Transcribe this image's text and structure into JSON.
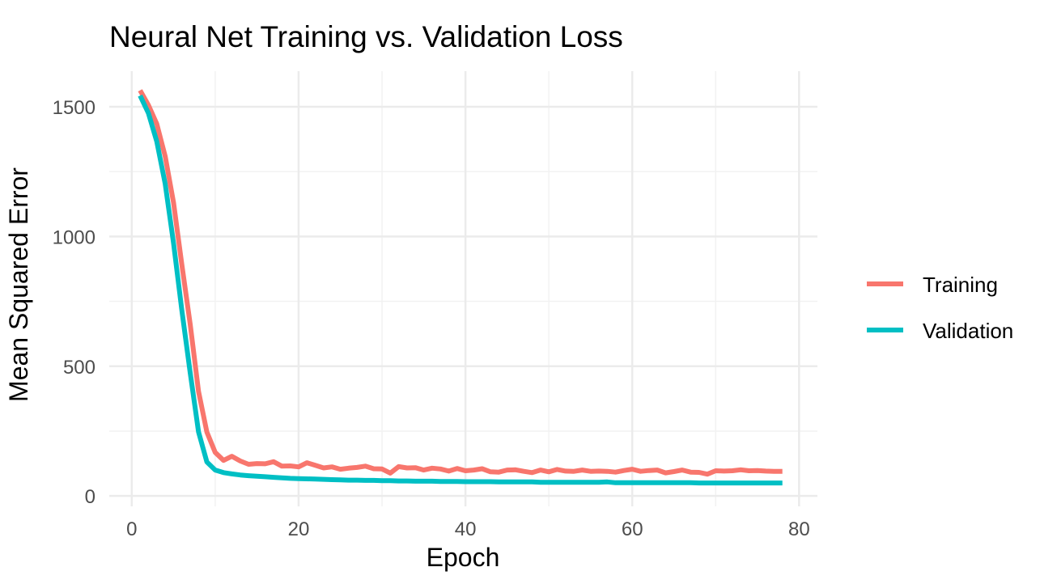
{
  "chart_data": {
    "type": "line",
    "title": "Neural Net Training vs. Validation Loss",
    "xlabel": "Epoch",
    "ylabel": "Mean Squared Error",
    "xlim": [
      -2.7,
      82.2
    ],
    "ylim": [
      -40,
      1637
    ],
    "x_ticks": [
      0,
      20,
      40,
      60,
      80
    ],
    "y_ticks": [
      0,
      500,
      1000,
      1500
    ],
    "grid": true,
    "legend_placement": "right",
    "x": [
      1,
      2,
      3,
      4,
      5,
      6,
      7,
      8,
      9,
      10,
      11,
      12,
      13,
      14,
      15,
      16,
      17,
      18,
      19,
      20,
      21,
      22,
      23,
      24,
      25,
      26,
      27,
      28,
      29,
      30,
      31,
      32,
      33,
      34,
      35,
      36,
      37,
      38,
      39,
      40,
      41,
      42,
      43,
      44,
      45,
      46,
      47,
      48,
      49,
      50,
      51,
      52,
      53,
      54,
      55,
      56,
      57,
      58,
      59,
      60,
      61,
      62,
      63,
      64,
      65,
      66,
      67,
      68,
      69,
      70,
      71,
      72,
      73,
      74,
      75,
      76,
      77,
      78
    ],
    "series": [
      {
        "name": "Training",
        "color": "#F8766D",
        "values": [
          1563,
          1506,
          1434,
          1309,
          1131,
          891,
          662,
          403,
          246,
          168,
          137,
          153,
          135,
          122,
          125,
          124,
          132,
          115,
          116,
          112,
          128,
          118,
          108,
          112,
          103,
          107,
          110,
          115,
          105,
          104,
          88,
          113,
          108,
          109,
          100,
          107,
          104,
          96,
          106,
          97,
          100,
          105,
          93,
          92,
          100,
          101,
          95,
          90,
          100,
          93,
          102,
          96,
          95,
          100,
          95,
          96,
          95,
          92,
          98,
          103,
          95,
          98,
          100,
          89,
          94,
          100,
          92,
          91,
          84,
          97,
          96,
          97,
          101,
          97,
          98,
          96,
          95,
          95
        ]
      },
      {
        "name": "Validation",
        "color": "#00BFC4",
        "values": [
          1543,
          1475,
          1366,
          1203,
          975,
          715,
          475,
          247,
          131,
          100,
          90,
          85,
          81,
          78,
          76,
          74,
          72,
          70,
          68,
          67,
          66,
          65,
          64,
          63,
          62,
          61,
          61,
          60,
          60,
          59,
          59,
          58,
          58,
          57,
          57,
          57,
          56,
          56,
          56,
          55,
          55,
          55,
          55,
          54,
          54,
          54,
          54,
          54,
          53,
          53,
          53,
          53,
          53,
          53,
          53,
          53,
          54,
          51,
          51,
          51,
          51,
          51,
          51,
          51,
          51,
          51,
          51,
          50,
          50,
          50,
          50,
          50,
          50,
          50,
          50,
          50,
          50,
          50
        ]
      }
    ]
  }
}
